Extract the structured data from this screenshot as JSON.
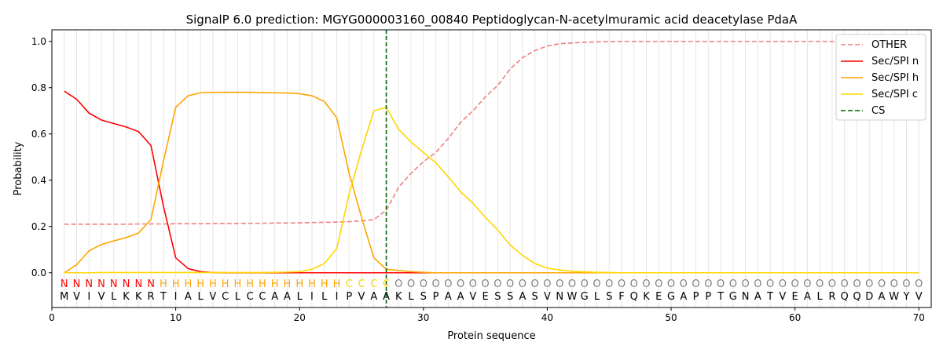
{
  "chart_data": {
    "type": "line",
    "title": "SignalP 6.0 prediction: MGYG000003160_00840 Peptidoglycan-N-acetylmuramic acid deacetylase PdaA",
    "xlabel": "Protein sequence",
    "ylabel": "Probability",
    "xlim": [
      0,
      71
    ],
    "ylim": [
      -0.15,
      1.05
    ],
    "xticks": [
      0,
      10,
      20,
      30,
      40,
      50,
      60,
      70
    ],
    "yticks": [
      "0.0",
      "0.2",
      "0.4",
      "0.6",
      "0.8",
      "1.0"
    ],
    "legend_position": "top-right",
    "cs_position": 27,
    "sequence": [
      "M",
      "V",
      "I",
      "V",
      "L",
      "K",
      "K",
      "R",
      "T",
      "I",
      "A",
      "L",
      "V",
      "C",
      "L",
      "C",
      "C",
      "A",
      "A",
      "L",
      "I",
      "L",
      "I",
      "P",
      "V",
      "A",
      "A",
      "K",
      "L",
      "S",
      "P",
      "A",
      "A",
      "V",
      "E",
      "S",
      "S",
      "A",
      "S",
      "V",
      "N",
      "W",
      "G",
      "L",
      "S",
      "F",
      "Q",
      "K",
      "E",
      "G",
      "A",
      "P",
      "P",
      "T",
      "G",
      "N",
      "A",
      "T",
      "V",
      "E",
      "A",
      "L",
      "R",
      "Q",
      "Q",
      "D",
      "A",
      "W",
      "Y",
      "V"
    ],
    "labels": "NNNNNNNNHHHHHHHHHHHHHHHCCCCOOOOOOOOOOOOOOOOOOOOOOOOOOOOOOOOOOOOOOOOOOO",
    "label_colors": {
      "N": "#ff0000",
      "H": "#ffa500",
      "C": "#ffd700",
      "O": "#808080"
    },
    "series": [
      {
        "name": "OTHER",
        "color": "#f08080",
        "dash": true,
        "values": [
          0.21,
          0.21,
          0.21,
          0.21,
          0.21,
          0.21,
          0.211,
          0.211,
          0.211,
          0.212,
          0.212,
          0.212,
          0.213,
          0.213,
          0.213,
          0.214,
          0.214,
          0.215,
          0.215,
          0.216,
          0.217,
          0.218,
          0.219,
          0.221,
          0.224,
          0.23,
          0.27,
          0.37,
          0.43,
          0.48,
          0.52,
          0.58,
          0.65,
          0.7,
          0.76,
          0.81,
          0.88,
          0.93,
          0.96,
          0.98,
          0.99,
          0.993,
          0.996,
          0.998,
          0.999,
          1,
          1,
          1,
          1,
          1,
          1,
          1,
          1,
          1,
          1,
          1,
          1,
          1,
          1,
          1,
          1,
          1,
          1,
          1,
          1,
          1,
          1,
          1,
          1,
          1
        ]
      },
      {
        "name": "Sec/SPI n",
        "color": "#ff0000",
        "dash": false,
        "values": [
          0.785,
          0.75,
          0.69,
          0.66,
          0.645,
          0.63,
          0.61,
          0.55,
          0.29,
          0.065,
          0.018,
          0.005,
          0.001,
          0,
          0,
          0,
          0,
          0,
          0,
          0,
          0,
          0,
          0,
          0,
          0,
          0,
          0,
          0,
          0,
          0,
          0,
          0,
          0,
          0,
          0,
          0,
          0,
          0,
          0,
          0,
          0,
          0,
          0,
          0,
          0,
          0,
          0,
          0,
          0,
          0,
          0,
          0,
          0,
          0,
          0,
          0,
          0,
          0,
          0,
          0,
          0,
          0,
          0,
          0,
          0,
          0,
          0,
          0,
          0,
          0
        ]
      },
      {
        "name": "Sec/SPI h",
        "color": "#ffa500",
        "dash": false,
        "values": [
          0,
          0.035,
          0.095,
          0.122,
          0.138,
          0.152,
          0.172,
          0.23,
          0.48,
          0.715,
          0.765,
          0.778,
          0.78,
          0.78,
          0.78,
          0.78,
          0.779,
          0.778,
          0.777,
          0.774,
          0.765,
          0.74,
          0.67,
          0.43,
          0.24,
          0.065,
          0.015,
          0.01,
          0.005,
          0.002,
          0,
          0,
          0,
          0,
          0,
          0,
          0,
          0,
          0,
          0,
          0,
          0,
          0,
          0,
          0,
          0,
          0,
          0,
          0,
          0,
          0,
          0,
          0,
          0,
          0,
          0,
          0,
          0,
          0,
          0,
          0,
          0,
          0,
          0,
          0,
          0,
          0,
          0,
          0,
          0
        ]
      },
      {
        "name": "Sec/SPI c",
        "color": "#ffd700",
        "dash": false,
        "values": [
          0,
          0,
          0,
          0.001,
          0.001,
          0.001,
          0.001,
          0.001,
          0.001,
          0.001,
          0.001,
          0.001,
          0.001,
          0.001,
          0.001,
          0.001,
          0.001,
          0.002,
          0.003,
          0.005,
          0.015,
          0.04,
          0.105,
          0.34,
          0.53,
          0.7,
          0.715,
          0.62,
          0.565,
          0.52,
          0.475,
          0.415,
          0.35,
          0.3,
          0.24,
          0.185,
          0.12,
          0.075,
          0.04,
          0.02,
          0.012,
          0.007,
          0.004,
          0.002,
          0.001,
          0,
          0,
          0,
          0,
          0,
          0,
          0,
          0,
          0,
          0,
          0,
          0,
          0,
          0,
          0,
          0,
          0,
          0,
          0,
          0,
          0,
          0,
          0,
          0,
          0
        ]
      }
    ],
    "cs_label": "CS"
  }
}
